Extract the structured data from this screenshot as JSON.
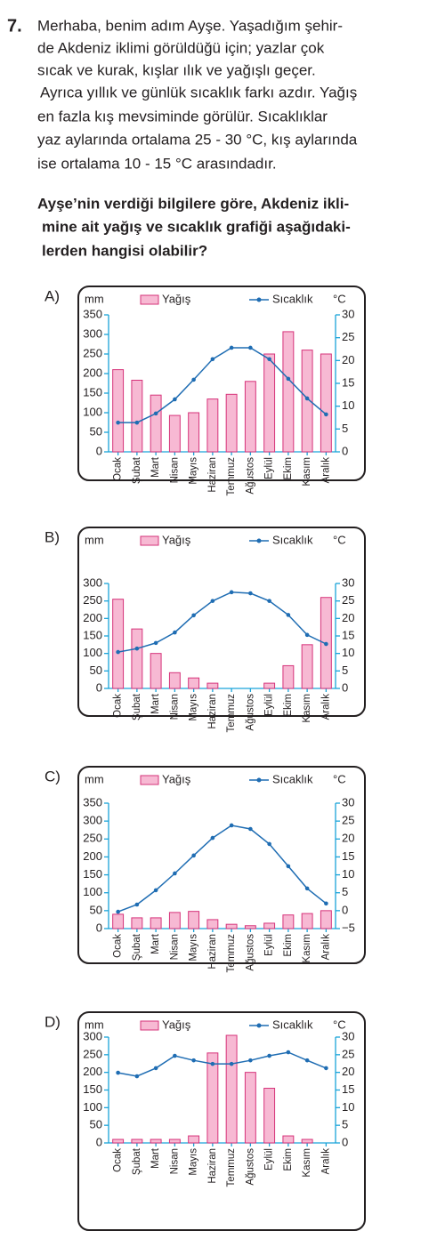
{
  "question": {
    "number": "7.",
    "paragraph": [
      "Merhaba, benim adım Ayşe. Yaşadığım şehir-",
      "de Akdeniz iklimi görüldüğü için; yazlar çok",
      "sıcak ve kurak, kışlar ılık ve yağışlı geçer.",
      "Ayrıca yıllık ve günlük sıcaklık farkı azdır. Yağış",
      "en fazla kış mevsiminde görülür. Sıcaklıklar",
      "yaz aylarında ortalama 25 - 30 °C, kış aylarında",
      "ise ortalama 10 - 15 °C arasındadır."
    ],
    "prompt": [
      "Ayşe’nin verdiği bilgilere göre, Akdeniz ikli-",
      "mine ait yağış ve sıcaklık grafiği aşağıdaki-",
      "lerden hangisi olabilir?"
    ]
  },
  "chart_data": [
    {
      "type": "bar-line",
      "option": "A)",
      "y_label": "mm",
      "y2_label": "°C",
      "categories": [
        "Ocak",
        "Şubat",
        "Mart",
        "Nisan",
        "Mayıs",
        "Haziran",
        "Temmuz",
        "Ağustos",
        "Eylül",
        "Ekim",
        "Kasım",
        "Aralık"
      ],
      "series": [
        {
          "name": "Yağış",
          "type": "bar",
          "color": "#f7b9d3",
          "values": [
            210,
            183,
            145,
            93,
            100,
            135,
            147,
            180,
            250,
            307,
            260,
            250
          ]
        },
        {
          "name": "Sıcaklık",
          "type": "line",
          "axis": "y2",
          "color": "#1f6db3",
          "values": [
            6.4,
            6.4,
            8.4,
            11.5,
            15.8,
            20.3,
            22.8,
            22.8,
            20.3,
            16,
            11.7,
            8.2
          ]
        }
      ],
      "ylim": [
        0,
        350
      ],
      "yticks": [
        0,
        50,
        100,
        150,
        200,
        250,
        300,
        350
      ],
      "y2lim": [
        0,
        30
      ],
      "y2ticks": [
        0,
        5,
        10,
        15,
        20,
        25,
        30
      ]
    },
    {
      "type": "bar-line",
      "option": "B)",
      "y_label": "mm",
      "y2_label": "°C",
      "categories": [
        "Ocak",
        "Şubat",
        "Mart",
        "Nisan",
        "Mayıs",
        "Haziran",
        "Temmuz",
        "Ağustos",
        "Eylül",
        "Ekim",
        "Kasım",
        "Aralık"
      ],
      "series": [
        {
          "name": "Yağış",
          "type": "bar",
          "color": "#f7b9d3",
          "values": [
            255,
            170,
            100,
            45,
            30,
            15,
            0,
            0,
            15,
            65,
            125,
            260
          ]
        },
        {
          "name": "Sıcaklık",
          "type": "line",
          "axis": "y2",
          "color": "#1f6db3",
          "values": [
            10.4,
            11.4,
            13,
            16,
            20.9,
            25,
            27.5,
            27.2,
            25,
            21,
            15.3,
            12.7
          ]
        }
      ],
      "ylim": [
        0,
        300
      ],
      "yticks": [
        0,
        50,
        100,
        150,
        200,
        250,
        300
      ],
      "y2lim": [
        0,
        30
      ],
      "y2ticks": [
        0,
        5,
        10,
        15,
        20,
        25,
        30
      ]
    },
    {
      "type": "bar-line",
      "option": "C)",
      "y_label": "mm",
      "y2_label": "°C",
      "categories": [
        "Ocak",
        "Şubat",
        "Mart",
        "Nisan",
        "Mayıs",
        "Haziran",
        "Temmuz",
        "Ağustos",
        "Eylül",
        "Ekim",
        "Kasım",
        "Aralık"
      ],
      "series": [
        {
          "name": "Yağış",
          "type": "bar",
          "color": "#f7b9d3",
          "values": [
            40,
            30,
            30,
            45,
            48,
            25,
            12,
            8,
            15,
            38,
            42,
            50
          ]
        },
        {
          "name": "Sıcaklık",
          "type": "line",
          "axis": "y2",
          "color": "#1f6db3",
          "values": [
            -0.3,
            1.7,
            5.7,
            10.4,
            15.4,
            20.3,
            23.8,
            22.8,
            18.6,
            12.4,
            6.2,
            2
          ]
        }
      ],
      "ylim": [
        0,
        350
      ],
      "yticks": [
        0,
        50,
        100,
        150,
        200,
        250,
        300,
        350
      ],
      "y2lim": [
        -5,
        30
      ],
      "y2ticks": [
        {
          "value": -5,
          "label": "−5"
        },
        0,
        5,
        10,
        15,
        20,
        25,
        30
      ]
    },
    {
      "type": "bar-line",
      "option": "D)",
      "y_label": "mm",
      "y2_label": "°C",
      "categories": [
        "Ocak",
        "Şubat",
        "Mart",
        "Nisan",
        "Mayıs",
        "Haziran",
        "Temmuz",
        "Ağustos",
        "Eylül",
        "Ekim",
        "Kasım",
        "Aralık"
      ],
      "series": [
        {
          "name": "Yağış",
          "type": "bar",
          "color": "#f7b9d3",
          "values": [
            10,
            10,
            10,
            10,
            20,
            255,
            305,
            200,
            155,
            20,
            10,
            0
          ]
        },
        {
          "name": "Sıcaklık",
          "type": "line",
          "axis": "y2",
          "color": "#1f6db3",
          "values": [
            19.9,
            18.9,
            21.2,
            24.7,
            23.4,
            22.4,
            22.4,
            23.4,
            24.7,
            25.7,
            23.4,
            21.2
          ]
        }
      ],
      "ylim": [
        0,
        300
      ],
      "yticks": [
        0,
        50,
        100,
        150,
        200,
        250,
        300
      ],
      "y2lim": [
        0,
        30
      ],
      "y2ticks": [
        0,
        5,
        10,
        15,
        20,
        25,
        30
      ]
    }
  ]
}
